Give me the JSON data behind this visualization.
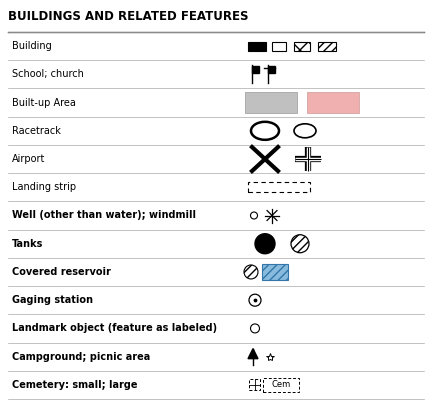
{
  "title": "BUILDINGS AND RELATED FEATURES",
  "labels": [
    "Building",
    "School; church",
    "Built-up Area",
    "Racetrack",
    "Airport",
    "Landing strip",
    "Well (other than water); windmill",
    "Tanks",
    "Covered reservoir",
    "Gaging station",
    "Landmark object (feature as labeled)",
    "Campground; picnic area",
    "Cemetery: small; large"
  ],
  "bold_rows": [
    0,
    1,
    2,
    3,
    4,
    5,
    6,
    7,
    8,
    9,
    10,
    11,
    12
  ],
  "normal_rows": [
    0,
    1,
    2,
    3,
    4,
    5
  ],
  "fig_width": 4.32,
  "fig_height": 4.07,
  "dpi": 100,
  "title_fontsize": 8.5,
  "label_fontsize": 7.0,
  "gray_rect_color": "#c0c0c0",
  "pink_rect_color": "#f0b0b0",
  "blue_hatch_color": "#5090c0"
}
